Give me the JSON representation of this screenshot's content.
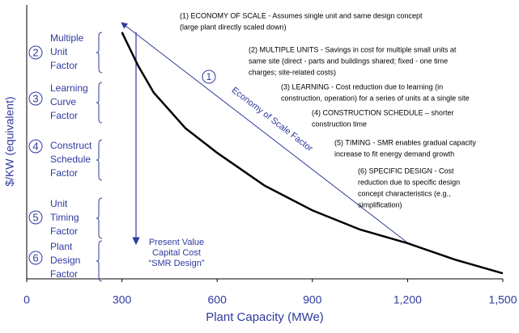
{
  "chart_data": {
    "type": "line",
    "x_label": "Plant Capacity (MWe)",
    "y_label": "$/KW (equivalent)",
    "xlim": [
      0,
      1500
    ],
    "ylim": [
      0,
      100
    ],
    "xticks": [
      0,
      300,
      600,
      900,
      {
        "value": 1200,
        "label": "1,200"
      },
      {
        "value": 1500,
        "label": "1,500"
      }
    ],
    "series": [
      {
        "color": "#000000",
        "x": [
          300,
          350,
          400,
          500,
          600,
          750,
          900,
          1050,
          1200,
          1350,
          1500
        ],
        "values": [
          90,
          78,
          68,
          55,
          46,
          34,
          25,
          18,
          13,
          7,
          2
        ]
      }
    ],
    "scale_arrow": {
      "number": "1",
      "label": "Economy of Scale Factor"
    },
    "present_value_label": [
      "Present Value",
      "Capital Cost",
      "“SMR Design”"
    ],
    "factors": [
      {
        "number": "2",
        "lines": [
          "Multiple",
          "Unit",
          "Factor"
        ]
      },
      {
        "number": "3",
        "lines": [
          "Learning",
          "Curve",
          "Factor"
        ]
      },
      {
        "number": "4",
        "lines": [
          "Construct",
          "Schedule",
          "Factor"
        ]
      },
      {
        "number": "5",
        "lines": [
          "Unit",
          "Timing",
          "Factor"
        ]
      },
      {
        "number": "6",
        "lines": [
          "Plant",
          "Design",
          "Factor"
        ]
      }
    ],
    "annotations": [
      [
        "(1) ECONOMY OF SCALE - Assumes single unit and same design concept",
        "(large plant directly scaled down)"
      ],
      [
        "(2) MULTIPLE UNITS - Savings in cost for multiple small units at",
        "same site (direct - parts and buildings shared; fixed - one time",
        "charges; site-related costs)"
      ],
      [
        "(3) LEARNING - Cost reduction due to learning (in",
        "construction, operation) for a series of units at a single site"
      ],
      [
        "(4) CONSTRUCTION SCHEDULE – shorter",
        "construction time"
      ],
      [
        "(5) TIMING - SMR enables gradual capacity",
        "increase to fit energy demand growth"
      ],
      [
        "(6) SPECIFIC DESIGN - Cost",
        "reduction due to specific design",
        "concept characteristics (e.g.,",
        "simplification)"
      ]
    ]
  }
}
